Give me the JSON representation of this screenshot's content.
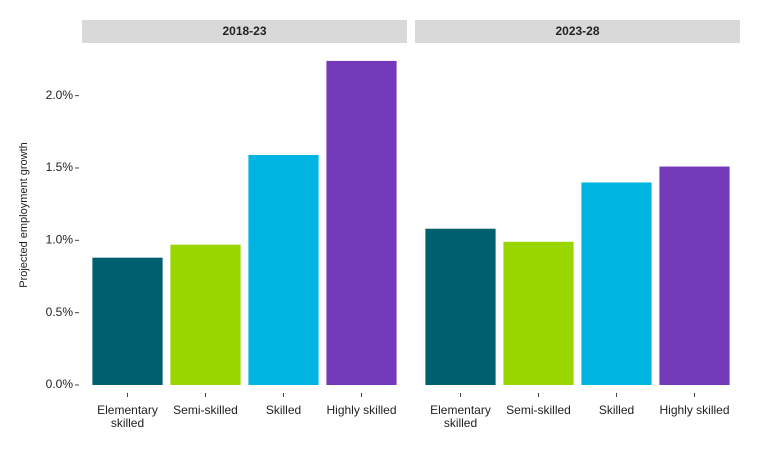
{
  "chart_data": [
    {
      "type": "bar",
      "title": "2018-23",
      "y_label": "Projected employment growth",
      "categories": [
        "Elementary skilled",
        "Semi-skilled",
        "Skilled",
        "Highly skilled"
      ],
      "values": [
        0.88,
        0.97,
        1.59,
        2.24
      ],
      "colors": [
        "#005f6e",
        "#99d600",
        "#00b5e2",
        "#733bb9"
      ],
      "ylim": [
        0,
        2.35
      ],
      "yticks": [
        {
          "value": 0,
          "label": "0.0%"
        },
        {
          "value": 0.5,
          "label": "0.5%"
        },
        {
          "value": 1,
          "label": "1.0%"
        },
        {
          "value": 1.5,
          "label": "1.5%"
        },
        {
          "value": 2,
          "label": "2.0%"
        }
      ]
    },
    {
      "type": "bar",
      "title": "2023-28",
      "categories": [
        "Elementary skilled",
        "Semi-skilled",
        "Skilled",
        "Highly skilled"
      ],
      "values": [
        1.08,
        0.99,
        1.4,
        1.51
      ],
      "colors": [
        "#005f6e",
        "#99d600",
        "#00b5e2",
        "#733bb9"
      ],
      "ylim": [
        0,
        2.35
      ]
    }
  ]
}
